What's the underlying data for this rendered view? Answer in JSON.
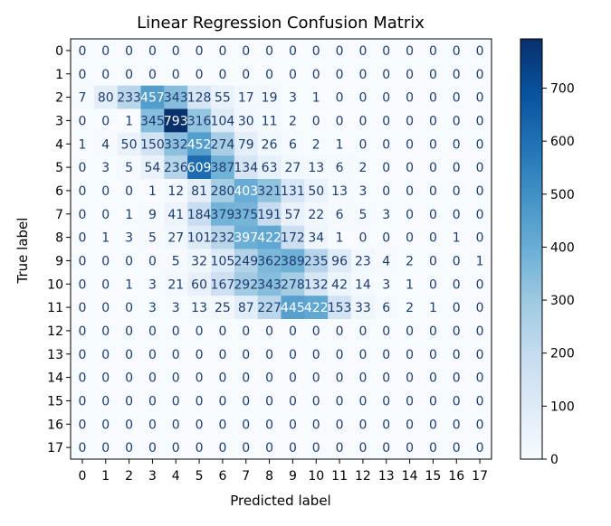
{
  "chart_data": {
    "type": "heatmap",
    "title": "Linear Regression Confusion Matrix",
    "xlabel": "Predicted label",
    "ylabel": "True label",
    "x_categories": [
      "0",
      "1",
      "2",
      "3",
      "4",
      "5",
      "6",
      "7",
      "8",
      "9",
      "10",
      "11",
      "12",
      "13",
      "14",
      "15",
      "16",
      "17"
    ],
    "y_categories": [
      "0",
      "1",
      "2",
      "3",
      "4",
      "5",
      "6",
      "7",
      "8",
      "9",
      "10",
      "11",
      "12",
      "13",
      "14",
      "15",
      "16",
      "17"
    ],
    "matrix": [
      [
        0,
        0,
        0,
        0,
        0,
        0,
        0,
        0,
        0,
        0,
        0,
        0,
        0,
        0,
        0,
        0,
        0,
        0
      ],
      [
        0,
        0,
        0,
        0,
        0,
        0,
        0,
        0,
        0,
        0,
        0,
        0,
        0,
        0,
        0,
        0,
        0,
        0
      ],
      [
        7,
        80,
        233,
        457,
        343,
        128,
        55,
        17,
        19,
        3,
        1,
        0,
        0,
        0,
        0,
        0,
        0,
        0
      ],
      [
        0,
        0,
        1,
        345,
        793,
        316,
        104,
        30,
        11,
        2,
        0,
        0,
        0,
        0,
        0,
        0,
        0,
        0
      ],
      [
        1,
        4,
        50,
        150,
        332,
        452,
        274,
        79,
        26,
        6,
        2,
        1,
        0,
        0,
        0,
        0,
        0,
        0
      ],
      [
        0,
        3,
        5,
        54,
        236,
        609,
        387,
        134,
        63,
        27,
        13,
        6,
        2,
        0,
        0,
        0,
        0,
        0
      ],
      [
        0,
        0,
        0,
        1,
        12,
        81,
        280,
        403,
        321,
        131,
        50,
        13,
        3,
        0,
        0,
        0,
        0,
        0
      ],
      [
        0,
        0,
        1,
        9,
        41,
        184,
        379,
        375,
        191,
        57,
        22,
        6,
        5,
        3,
        0,
        0,
        0,
        0
      ],
      [
        0,
        1,
        3,
        5,
        27,
        101,
        232,
        397,
        422,
        172,
        34,
        1,
        0,
        0,
        0,
        0,
        1,
        0
      ],
      [
        0,
        0,
        0,
        0,
        5,
        32,
        105,
        249,
        362,
        389,
        235,
        96,
        23,
        4,
        2,
        0,
        0,
        1
      ],
      [
        0,
        0,
        1,
        3,
        21,
        60,
        167,
        292,
        343,
        278,
        132,
        42,
        14,
        3,
        1,
        0,
        0,
        0
      ],
      [
        0,
        0,
        0,
        3,
        3,
        13,
        25,
        87,
        227,
        445,
        422,
        153,
        33,
        6,
        2,
        1,
        0,
        0
      ],
      [
        0,
        0,
        0,
        0,
        0,
        0,
        0,
        0,
        0,
        0,
        0,
        0,
        0,
        0,
        0,
        0,
        0,
        0
      ],
      [
        0,
        0,
        0,
        0,
        0,
        0,
        0,
        0,
        0,
        0,
        0,
        0,
        0,
        0,
        0,
        0,
        0,
        0
      ],
      [
        0,
        0,
        0,
        0,
        0,
        0,
        0,
        0,
        0,
        0,
        0,
        0,
        0,
        0,
        0,
        0,
        0,
        0
      ],
      [
        0,
        0,
        0,
        0,
        0,
        0,
        0,
        0,
        0,
        0,
        0,
        0,
        0,
        0,
        0,
        0,
        0,
        0
      ],
      [
        0,
        0,
        0,
        0,
        0,
        0,
        0,
        0,
        0,
        0,
        0,
        0,
        0,
        0,
        0,
        0,
        0,
        0
      ],
      [
        0,
        0,
        0,
        0,
        0,
        0,
        0,
        0,
        0,
        0,
        0,
        0,
        0,
        0,
        0,
        0,
        0,
        0
      ]
    ],
    "colormap": "Blues",
    "colormap_stops": [
      "#f7fbff",
      "#deebf7",
      "#c6dbef",
      "#9ecae1",
      "#6baed6",
      "#4292c6",
      "#2171b5",
      "#08519c",
      "#08306b"
    ],
    "value_range": [
      0,
      793
    ],
    "colorbar_ticks": [
      0,
      100,
      200,
      300,
      400,
      500,
      600,
      700
    ],
    "text_color_light": "#ffffff",
    "text_color_dark": "#1f3c6e"
  }
}
